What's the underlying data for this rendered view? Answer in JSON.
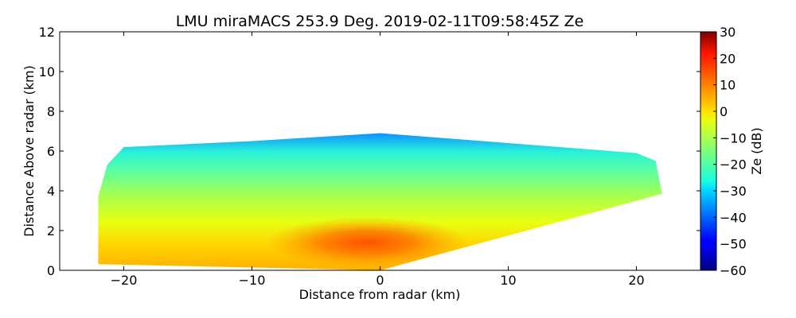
{
  "chart_data": {
    "type": "heatmap",
    "title": "LMU miraMACS 253.9 Deg. 2019-02-11T09:58:45Z  Ze",
    "xlabel": "Distance from radar (km)",
    "ylabel": "Distance Above radar  (km)",
    "xlim": [
      -25,
      25
    ],
    "ylim": [
      0,
      12
    ],
    "xticks": [
      -20,
      -10,
      0,
      10,
      20
    ],
    "yticks": [
      0,
      2,
      4,
      6,
      8,
      10,
      12
    ],
    "colorbar": {
      "label": "Ze (dB)",
      "range": [
        -60,
        30
      ],
      "ticks": [
        30,
        20,
        10,
        0,
        -10,
        -20,
        -30,
        -40,
        -50,
        -60
      ],
      "colormap": "jet"
    },
    "scan_extent": {
      "left_edge_x": -22,
      "right_edge_x": 22,
      "max_height_km": 6.9,
      "left_top_height_km": 4.5,
      "right_top_height_km": 5.5
    },
    "tick_text": {
      "x": [
        "−20",
        "−10",
        "0",
        "10",
        "20"
      ],
      "y": [
        "0",
        "2",
        "4",
        "6",
        "8",
        "10",
        "12"
      ],
      "cbar": [
        "30",
        "20",
        "10",
        "0",
        "−10",
        "−20",
        "−30",
        "−40",
        "−50",
        "−60"
      ]
    }
  }
}
